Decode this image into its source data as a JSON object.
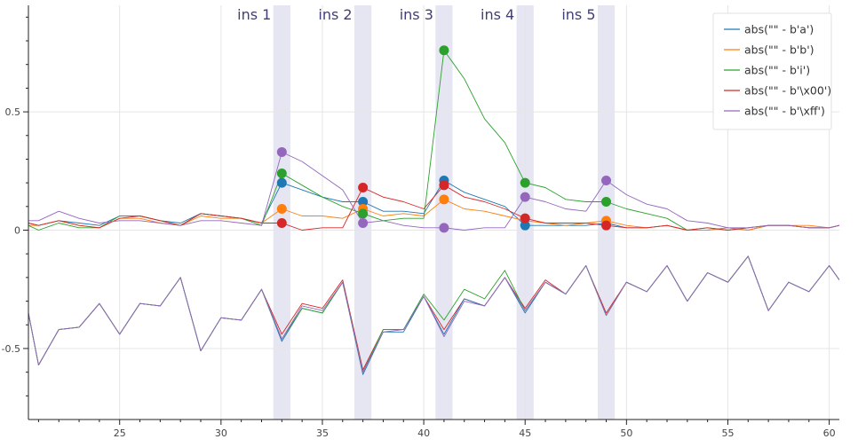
{
  "chart_data": {
    "type": "line",
    "x": [
      20.5,
      21,
      22,
      23,
      24,
      25,
      26,
      27,
      28,
      29,
      30,
      31,
      32,
      33,
      34,
      35,
      36,
      37,
      38,
      39,
      40,
      41,
      42,
      43,
      44,
      45,
      46,
      47,
      48,
      49,
      50,
      51,
      52,
      53,
      54,
      55,
      56,
      57,
      58,
      59,
      60,
      60.5
    ],
    "xlim": [
      20.5,
      60.5
    ],
    "ylim": [
      -0.8,
      0.95
    ],
    "xticks": [
      25,
      30,
      35,
      40,
      45,
      50,
      55,
      60
    ],
    "xtick_labels": [
      "25",
      "30",
      "35",
      "40",
      "45",
      "50",
      "55",
      "60"
    ],
    "yticks": [
      -0.5,
      0,
      0.5
    ],
    "ytick_labels": [
      "-0.5",
      "0",
      "0.5"
    ],
    "minor_xticks": [
      21,
      22,
      23,
      24,
      26,
      27,
      28,
      29,
      31,
      32,
      33,
      34,
      36,
      37,
      38,
      39,
      41,
      42,
      43,
      44,
      46,
      47,
      48,
      49,
      51,
      52,
      53,
      54,
      56,
      57,
      58,
      59
    ],
    "minor_yticks": [
      -0.7,
      -0.6,
      -0.4,
      -0.3,
      -0.2,
      -0.1,
      0.1,
      0.2,
      0.3,
      0.4,
      0.6,
      0.7,
      0.8,
      0.9
    ],
    "grid": true,
    "legend_position": "top-right",
    "bands": [
      {
        "label": "ins 1",
        "x": 33
      },
      {
        "label": "ins 2",
        "x": 37
      },
      {
        "label": "ins 3",
        "x": 41
      },
      {
        "label": "ins 4",
        "x": 45
      },
      {
        "label": "ins 5",
        "x": 49
      }
    ],
    "band_color": "#e6e6f2",
    "band_halfwidth": 0.42,
    "series": [
      {
        "name": "abs(\"\" - b'a')",
        "color": "#1f77b4",
        "marker_x": [
          33,
          37,
          41,
          45
        ],
        "values": [
          0.03,
          0.02,
          0.04,
          0.03,
          0.02,
          0.06,
          0.06,
          0.04,
          0.03,
          0.07,
          0.06,
          0.05,
          0.03,
          0.2,
          0.17,
          0.14,
          0.12,
          0.12,
          0.08,
          0.08,
          0.07,
          0.21,
          0.16,
          0.13,
          0.1,
          0.02,
          0.02,
          0.02,
          0.02,
          0.03,
          0.01,
          0.01,
          0.02,
          0.0,
          0.0,
          0.01,
          0.0,
          0.02,
          0.02,
          0.01,
          0.01,
          0.02
        ]
      },
      {
        "name": "abs(\"\" - b'b')",
        "color": "#ff7f0e",
        "marker_x": [
          33,
          37,
          41,
          49
        ],
        "values": [
          0.02,
          0.02,
          0.04,
          0.02,
          0.01,
          0.05,
          0.05,
          0.03,
          0.02,
          0.06,
          0.05,
          0.05,
          0.03,
          0.09,
          0.06,
          0.06,
          0.05,
          0.09,
          0.06,
          0.07,
          0.06,
          0.13,
          0.09,
          0.08,
          0.06,
          0.04,
          0.03,
          0.02,
          0.03,
          0.04,
          0.02,
          0.01,
          0.02,
          0.0,
          0.0,
          0.01,
          0.0,
          0.02,
          0.02,
          0.02,
          0.01,
          0.02
        ]
      },
      {
        "name": "abs(\"\" - b'i')",
        "color": "#2ca02c",
        "marker_x": [
          33,
          37,
          41,
          45,
          49
        ],
        "values": [
          0.02,
          0.0,
          0.03,
          0.01,
          0.01,
          0.06,
          0.06,
          0.04,
          0.02,
          0.07,
          0.06,
          0.05,
          0.02,
          0.24,
          0.19,
          0.14,
          0.1,
          0.07,
          0.04,
          0.05,
          0.05,
          0.76,
          0.64,
          0.47,
          0.37,
          0.2,
          0.18,
          0.13,
          0.12,
          0.12,
          0.09,
          0.07,
          0.05,
          0.0,
          0.01,
          0.0,
          0.01,
          0.02,
          0.02,
          0.01,
          0.01,
          0.02
        ]
      },
      {
        "name": "abs(\"\" - b'\\x00')",
        "color": "#d62728",
        "marker_x": [
          33,
          37,
          41,
          45,
          49
        ],
        "values": [
          0.03,
          0.02,
          0.04,
          0.02,
          0.01,
          0.05,
          0.06,
          0.04,
          0.02,
          0.07,
          0.06,
          0.05,
          0.03,
          0.03,
          0.0,
          0.01,
          0.01,
          0.18,
          0.14,
          0.12,
          0.09,
          0.19,
          0.14,
          0.12,
          0.09,
          0.05,
          0.03,
          0.03,
          0.03,
          0.02,
          0.01,
          0.01,
          0.02,
          0.0,
          0.01,
          0.0,
          0.01,
          0.02,
          0.02,
          0.01,
          0.01,
          0.02
        ]
      },
      {
        "name": "abs(\"\" - b'\\xff')",
        "color": "#9467bd",
        "marker_x": [
          33,
          37,
          41,
          45,
          49
        ],
        "values": [
          0.04,
          0.04,
          0.08,
          0.05,
          0.03,
          0.04,
          0.04,
          0.03,
          0.02,
          0.04,
          0.04,
          0.03,
          0.02,
          0.33,
          0.29,
          0.23,
          0.17,
          0.03,
          0.04,
          0.02,
          0.01,
          0.01,
          0.0,
          0.01,
          0.01,
          0.14,
          0.12,
          0.09,
          0.08,
          0.21,
          0.15,
          0.11,
          0.09,
          0.04,
          0.03,
          0.01,
          0.01,
          0.02,
          0.02,
          0.01,
          0.01,
          0.02
        ]
      },
      {
        "name": "",
        "color": "#d62728",
        "markers": false,
        "values": [
          -0.35,
          -0.57,
          -0.42,
          -0.41,
          -0.31,
          -0.44,
          -0.31,
          -0.32,
          -0.2,
          -0.51,
          -0.37,
          -0.38,
          -0.25,
          -0.44,
          -0.31,
          -0.33,
          -0.21,
          -0.59,
          -0.42,
          -0.42,
          -0.28,
          -0.42,
          -0.29,
          -0.32,
          -0.2,
          -0.33,
          -0.21,
          -0.27,
          -0.15,
          -0.35,
          -0.22,
          -0.26,
          -0.15,
          -0.3,
          -0.18,
          -0.22,
          -0.11,
          -0.34,
          -0.22,
          -0.26,
          -0.15,
          -0.21
        ]
      },
      {
        "name": "",
        "color": "#1f77b4",
        "markers": false,
        "values": [
          -0.35,
          -0.57,
          -0.42,
          -0.41,
          -0.31,
          -0.44,
          -0.31,
          -0.32,
          -0.2,
          -0.51,
          -0.37,
          -0.38,
          -0.25,
          -0.47,
          -0.33,
          -0.35,
          -0.22,
          -0.61,
          -0.43,
          -0.43,
          -0.28,
          -0.44,
          -0.29,
          -0.32,
          -0.2,
          -0.35,
          -0.22,
          -0.27,
          -0.15,
          -0.36,
          -0.22,
          -0.26,
          -0.15,
          -0.3,
          -0.18,
          -0.22,
          -0.11,
          -0.34,
          -0.22,
          -0.26,
          -0.15,
          -0.21
        ]
      },
      {
        "name": "",
        "color": "#2ca02c",
        "markers": false,
        "values": [
          -0.35,
          -0.57,
          -0.42,
          -0.41,
          -0.31,
          -0.44,
          -0.31,
          -0.32,
          -0.2,
          -0.51,
          -0.37,
          -0.38,
          -0.25,
          -0.46,
          -0.33,
          -0.35,
          -0.22,
          -0.6,
          -0.42,
          -0.42,
          -0.27,
          -0.38,
          -0.25,
          -0.29,
          -0.17,
          -0.34,
          -0.22,
          -0.27,
          -0.15,
          -0.36,
          -0.22,
          -0.26,
          -0.15,
          -0.3,
          -0.18,
          -0.22,
          -0.11,
          -0.34,
          -0.22,
          -0.26,
          -0.15,
          -0.21
        ]
      },
      {
        "name": "",
        "color": "#9467bd",
        "markers": false,
        "values": [
          -0.35,
          -0.57,
          -0.42,
          -0.41,
          -0.31,
          -0.44,
          -0.31,
          -0.32,
          -0.2,
          -0.51,
          -0.37,
          -0.38,
          -0.25,
          -0.46,
          -0.32,
          -0.34,
          -0.22,
          -0.6,
          -0.43,
          -0.42,
          -0.28,
          -0.45,
          -0.3,
          -0.32,
          -0.2,
          -0.34,
          -0.22,
          -0.27,
          -0.15,
          -0.36,
          -0.22,
          -0.26,
          -0.15,
          -0.3,
          -0.18,
          -0.22,
          -0.11,
          -0.34,
          -0.22,
          -0.26,
          -0.15,
          -0.21
        ]
      }
    ]
  }
}
